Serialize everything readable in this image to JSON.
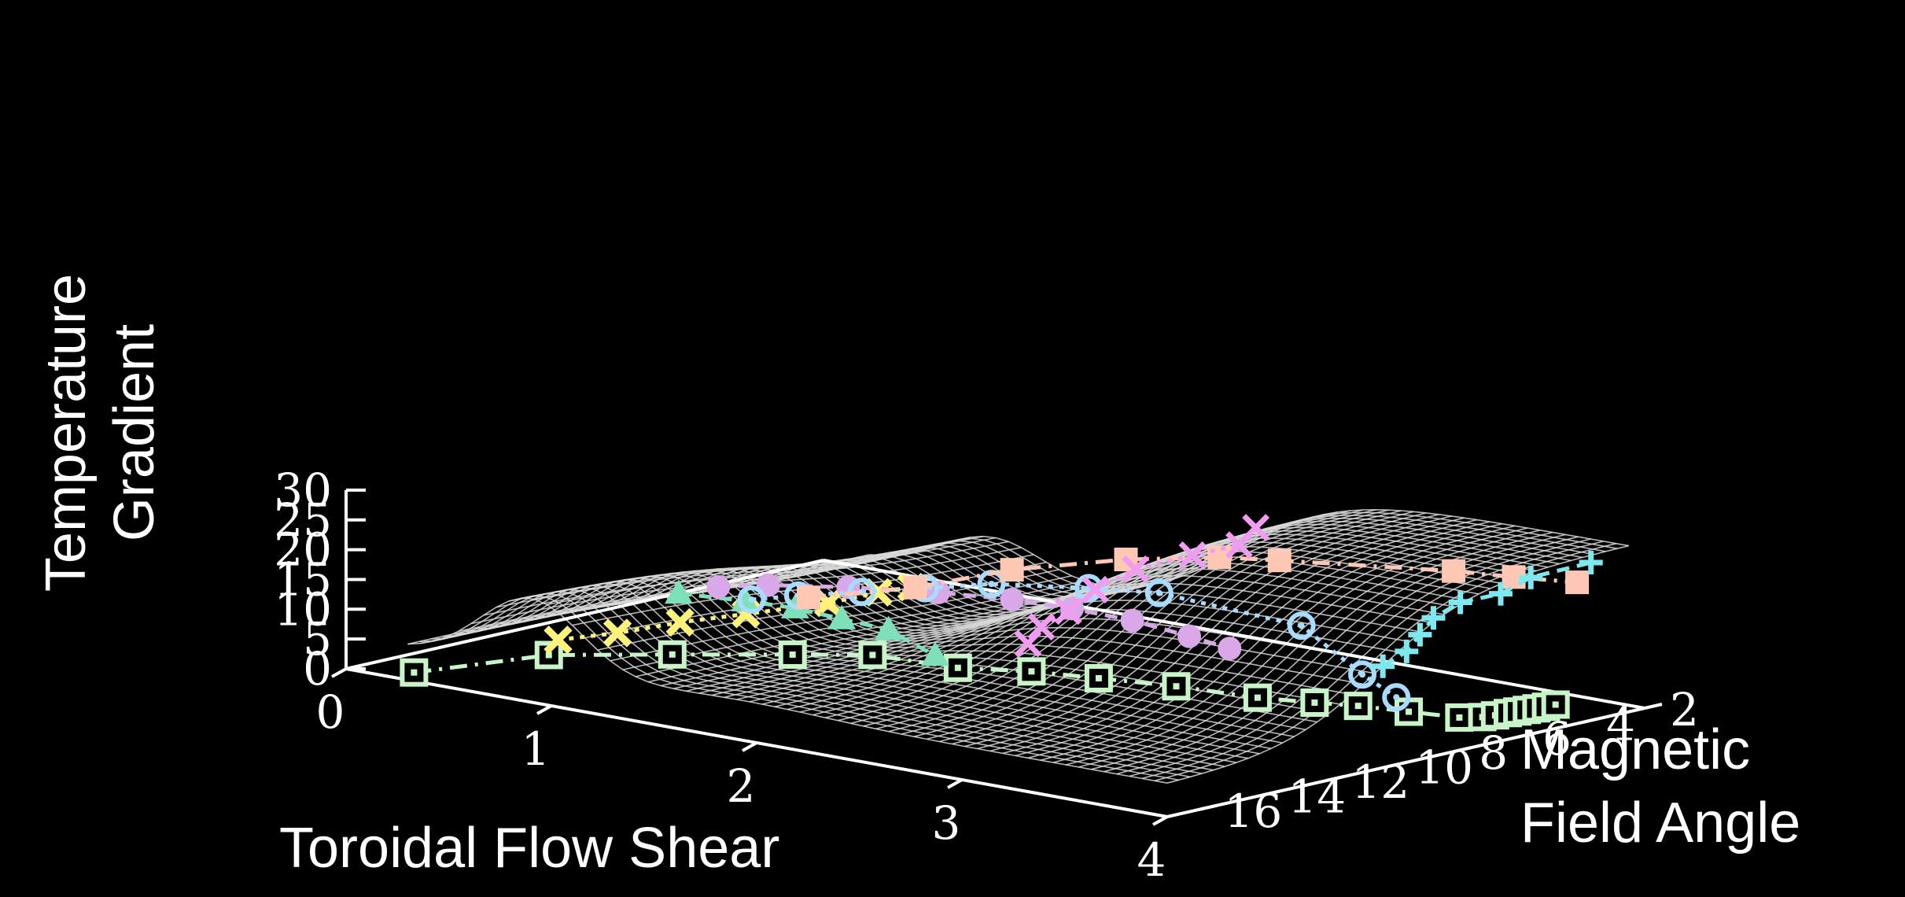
{
  "chart_data": {
    "type": "surface3d",
    "title": "",
    "zlabel": [
      "Temperature",
      "Gradient"
    ],
    "xlabel": "Toroidal Flow Shear",
    "ylabel": [
      "Magnetic",
      "Field Angle"
    ],
    "xlim": [
      0,
      4
    ],
    "ylim": [
      2,
      17
    ],
    "zlim": [
      0,
      30
    ],
    "x_ticks": [
      "0",
      "1",
      "2",
      "3",
      "4"
    ],
    "y_ticks": [
      "2",
      "4",
      "6",
      "8",
      "10",
      "12",
      "14",
      "16"
    ],
    "z_ticks": [
      "0",
      "5",
      "10",
      "15",
      "20",
      "25",
      "30"
    ],
    "grid": false,
    "surface": {
      "style": "wireframe",
      "color": "#d8d8d8"
    },
    "series": [
      {
        "color": "#c8f5c8",
        "marker": "square-open",
        "line": "dash-dot",
        "points": [
          [
            0.3,
            16.8,
            1
          ],
          [
            0.6,
            14.5,
            3
          ],
          [
            1.0,
            13.2,
            4
          ],
          [
            1.4,
            12.0,
            5
          ],
          [
            1.65,
            11.1,
            5.4
          ],
          [
            2.05,
            11.0,
            5.6
          ],
          [
            2.3,
            10.3,
            5.7
          ],
          [
            2.55,
            9.8,
            5.5
          ],
          [
            2.85,
            9.3,
            5.4
          ],
          [
            3.2,
            9.0,
            5.3
          ],
          [
            3.4,
            8.5,
            5.1
          ],
          [
            3.55,
            8.1,
            5
          ],
          [
            3.75,
            7.8,
            4.9
          ],
          [
            3.95,
            7.5,
            4.8
          ],
          [
            4.0,
            7.1,
            4.7
          ],
          [
            4.0,
            6.7,
            4.5
          ],
          [
            4.0,
            6.3,
            4.4
          ],
          [
            4.0,
            6.0,
            4.3
          ],
          [
            4.0,
            5.7,
            4.2
          ],
          [
            4.0,
            5.4,
            4.1
          ],
          [
            4.0,
            5.1,
            4.0
          ],
          [
            4.0,
            4.8,
            4.0
          ]
        ]
      },
      {
        "color": "#fff27a",
        "marker": "x-bold",
        "line": "dotted",
        "points": [
          [
            0.8,
            15.5,
            8
          ],
          [
            0.95,
            14.6,
            9
          ],
          [
            1.1,
            13.6,
            10.5
          ],
          [
            1.25,
            12.5,
            11.5
          ],
          [
            1.45,
            11.2,
            13
          ],
          [
            1.6,
            10.6,
            15
          ],
          [
            1.7,
            10.2,
            16
          ]
        ]
      },
      {
        "color": "#7de0b8",
        "marker": "triangle",
        "line": "dashed",
        "points": [
          [
            1.0,
            13.0,
            14
          ],
          [
            1.2,
            12.2,
            13
          ],
          [
            1.35,
            11.6,
            12
          ],
          [
            1.5,
            11.1,
            10.5
          ],
          [
            1.65,
            10.6,
            9
          ],
          [
            1.8,
            10.1,
            5
          ]
        ]
      },
      {
        "color": "#d8a8e8",
        "marker": "circle",
        "line": "dashed",
        "points": [
          [
            1.1,
            12.4,
            15
          ],
          [
            1.25,
            11.8,
            15.5
          ],
          [
            1.5,
            10.9,
            15.6
          ],
          [
            1.8,
            10.0,
            15.5
          ],
          [
            2.05,
            9.3,
            15.0
          ],
          [
            2.25,
            8.7,
            14.0
          ],
          [
            2.45,
            8.1,
            12.5
          ],
          [
            2.65,
            7.6,
            10.5
          ],
          [
            2.8,
            7.3,
            9.0
          ]
        ]
      },
      {
        "color": "#a8dcff",
        "marker": "circle-open",
        "line": "dotted",
        "points": [
          [
            1.2,
            12.0,
            13
          ],
          [
            1.35,
            11.5,
            14
          ],
          [
            1.55,
            10.8,
            15
          ],
          [
            1.75,
            10.1,
            16
          ],
          [
            1.95,
            9.3,
            17
          ],
          [
            2.3,
            8.5,
            17.5
          ],
          [
            2.55,
            7.9,
            17.5
          ],
          [
            3.15,
            7.3,
            15.0
          ],
          [
            3.4,
            7.0,
            8
          ],
          [
            3.55,
            6.9,
            5
          ]
        ]
      },
      {
        "color": "#ffc8b4",
        "marker": "square",
        "line": "dash-dot",
        "points": [
          [
            1.4,
            11.5,
            14
          ],
          [
            1.75,
            10.4,
            16.5
          ],
          [
            2.05,
            9.3,
            20
          ],
          [
            2.45,
            8.3,
            23
          ],
          [
            2.75,
            7.3,
            24
          ],
          [
            2.95,
            6.7,
            24
          ],
          [
            3.55,
            5.1,
            24
          ],
          [
            3.75,
            4.5,
            23.5
          ],
          [
            3.95,
            3.8,
            23
          ]
        ]
      },
      {
        "color": "#f09cf0",
        "marker": "x",
        "line": "dotted",
        "points": [
          [
            2.05,
            8.8,
            7
          ],
          [
            2.1,
            8.7,
            10
          ],
          [
            2.2,
            8.5,
            13
          ],
          [
            2.3,
            8.3,
            17
          ],
          [
            2.45,
            8.0,
            21
          ],
          [
            2.65,
            7.5,
            24
          ],
          [
            2.8,
            7.0,
            26
          ],
          [
            2.85,
            6.8,
            29
          ]
        ]
      },
      {
        "color": "#7ee8f0",
        "marker": "plus",
        "line": "dashed",
        "points": [
          [
            3.5,
            7.0,
            10
          ],
          [
            3.6,
            6.9,
            13
          ],
          [
            3.65,
            6.8,
            16
          ],
          [
            3.7,
            6.7,
            19
          ],
          [
            3.8,
            6.5,
            22
          ],
          [
            3.95,
            6.2,
            24
          ],
          [
            4.05,
            5.9,
            27
          ],
          [
            4.25,
            5.3,
            30
          ]
        ]
      }
    ]
  }
}
